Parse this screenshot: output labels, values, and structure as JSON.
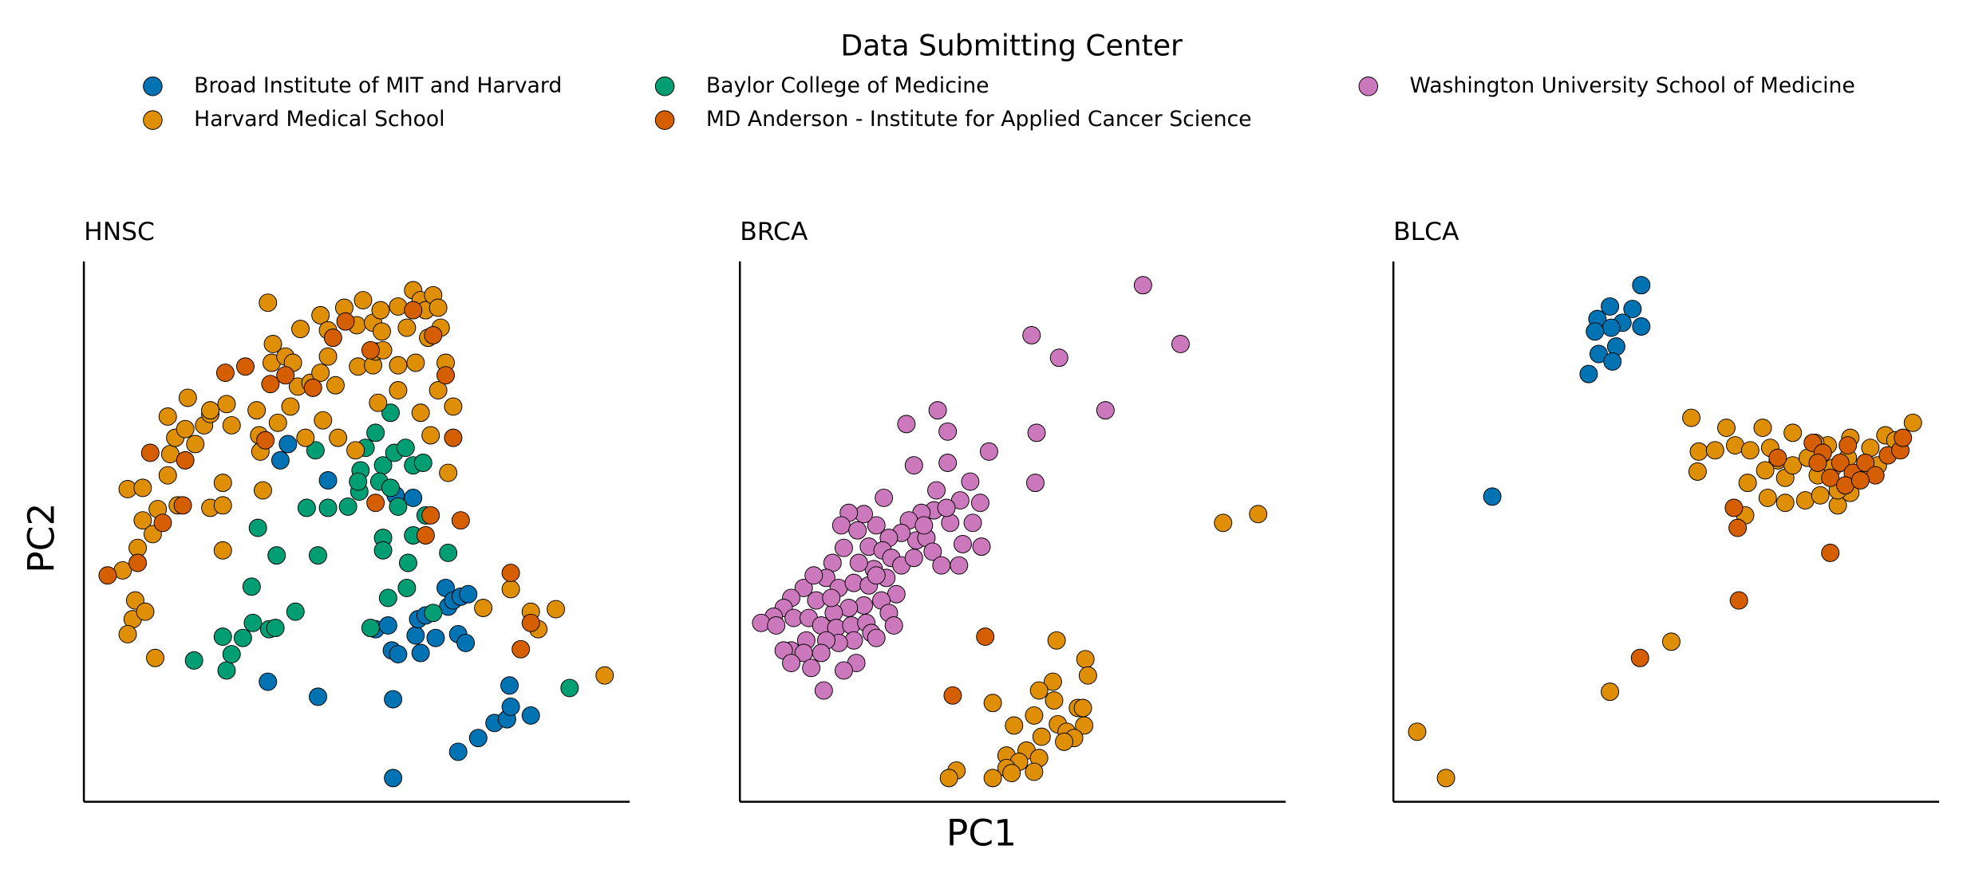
{
  "legend": {
    "title": "Data Submitting Center",
    "entries": [
      {
        "name": "Broad Institute of MIT and Harvard",
        "color": "#0173b2"
      },
      {
        "name": "Harvard Medical School",
        "color": "#de8f05"
      },
      {
        "name": "Baylor College of Medicine",
        "color": "#029e73"
      },
      {
        "name": "MD Anderson - Institute for Applied Cancer Science",
        "color": "#d55e00"
      },
      {
        "name": "Washington University School of Medicine",
        "color": "#cc78bc"
      }
    ]
  },
  "xlabel": "PC1",
  "ylabel": "PC2",
  "chart_data": [
    {
      "type": "scatter",
      "title": "HNSC",
      "xlim": [
        0,
        436
      ],
      "ylim": [
        0,
        432
      ],
      "series": [
        {
          "name": "Broad Institute of MIT and Harvard",
          "x": [
            163,
            195,
            157,
            147,
            187,
            247,
            247,
            299,
            315,
            328,
            338,
            341,
            357,
            340,
            233,
            243,
            246,
            251,
            265,
            269,
            281,
            289,
            291,
            295,
            301,
            307,
            299,
            305,
            267,
            273,
            263,
            249
          ],
          "values": [
            286,
            257,
            273,
            96,
            84,
            82,
            19,
            40,
            51,
            63,
            66,
            76,
            69,
            93,
            138,
            141,
            121,
            118,
            133,
            119,
            131,
            171,
            156,
            161,
            164,
            166,
            134,
            127,
            146,
            149,
            243,
            245
          ]
        },
        {
          "name": "Baylor College of Medicine",
          "x": [
            88,
            114,
            111,
            118,
            127,
            135,
            148,
            153,
            169,
            134,
            139,
            154,
            187,
            178,
            185,
            195,
            211,
            220,
            221,
            225,
            233,
            239,
            245,
            236,
            245,
            251,
            248,
            257,
            263,
            271,
            239,
            239,
            263,
            259,
            258,
            243,
            279,
            291,
            229,
            388,
            273,
            219
          ],
          "values": [
            113,
            105,
            132,
            118,
            131,
            143,
            138,
            139,
            152,
            172,
            219,
            197,
            197,
            235,
            281,
            235,
            236,
            248,
            265,
            283,
            295,
            269,
            311,
            256,
            251,
            236,
            279,
            283,
            269,
            271,
            211,
            201,
            213,
            191,
            171,
            163,
            151,
            199,
            139,
            91,
            229,
            256
          ]
        },
        {
          "name": "Harvard Medical School",
          "x": [
            31,
            39,
            35,
            41,
            49,
            43,
            47,
            55,
            35,
            47,
            57,
            67,
            69,
            73,
            81,
            67,
            83,
            89,
            96,
            101,
            111,
            101,
            111,
            118,
            114,
            101,
            138,
            141,
            143,
            155,
            165,
            171,
            181,
            189,
            201,
            195,
            219,
            231,
            233,
            151,
            147,
            150,
            161,
            167,
            173,
            189,
            195,
            208,
            218,
            223,
            231,
            237,
            238,
            251,
            258,
            263,
            269,
            273,
            279,
            283,
            275,
            285,
            289,
            265,
            251,
            239,
            235,
            251,
            269,
            283,
            295,
            277,
            291,
            217,
            203,
            191,
            177,
            319,
            341,
            357,
            377,
            363,
            416,
            111,
            59,
            75,
            140
          ],
          "values": [
            185,
            146,
            134,
            161,
            152,
            203,
            225,
            214,
            250,
            251,
            115,
            261,
            278,
            291,
            298,
            308,
            323,
            286,
            301,
            310,
            255,
            235,
            201,
            301,
            318,
            313,
            313,
            280,
            249,
            303,
            316,
            332,
            335,
            343,
            333,
            356,
            348,
            349,
            360,
            366,
            399,
            351,
            356,
            351,
            378,
            389,
            377,
            395,
            381,
            401,
            383,
            393,
            376,
            396,
            379,
            409,
            401,
            393,
            405,
            395,
            371,
            379,
            351,
            351,
            349,
            361,
            319,
            329,
            311,
            329,
            316,
            293,
            263,
            281,
            291,
            305,
            291,
            155,
            170,
            152,
            154,
            138,
            101,
            237,
            234,
            237,
            293
          ]
        },
        {
          "name": "MD Anderson - Institute for Applied Cancer Science",
          "x": [
            19,
            43,
            53,
            63,
            79,
            81,
            113,
            129,
            145,
            149,
            161,
            183,
            199,
            209,
            229,
            233,
            273,
            277,
            289,
            295,
            301,
            341,
            357,
            349,
            263,
            279
          ],
          "values": [
            181,
            191,
            279,
            223,
            237,
            273,
            343,
            348,
            289,
            334,
            341,
            331,
            371,
            384,
            361,
            239,
            213,
            229,
            341,
            291,
            225,
            183,
            143,
            122,
            393,
            373
          ]
        }
      ]
    },
    {
      "type": "scatter",
      "title": "BRCA",
      "xlim": [
        0,
        436
      ],
      "ylim": [
        0,
        432
      ],
      "series": [
        {
          "name": "Washington University School of Medicine",
          "x": [
            322,
            352,
            233,
            255,
            292,
            237,
            236,
            158,
            133,
            199,
            166,
            166,
            139,
            184,
            115,
            157,
            176,
            192,
            186,
            193,
            178,
            168,
            155,
            165,
            145,
            135,
            141,
            149,
            154,
            161,
            175,
            129,
            119,
            109,
            99,
            87,
            81,
            94,
            103,
            114,
            121,
            129,
            107,
            95,
            83,
            74,
            69,
            79,
            91,
            103,
            117,
            125,
            113,
            99,
            87,
            75,
            61,
            51,
            41,
            35,
            27,
            17,
            29,
            43,
            55,
            65,
            77,
            89,
            101,
            119,
            123,
            105,
            91,
            79,
            69,
            53,
            41,
            35,
            51,
            65,
            93,
            57,
            41,
            83,
            67,
            109,
            139,
            147,
            73,
            59,
            109
          ],
          "values": [
            413,
            366,
            373,
            355,
            313,
            295,
            255,
            313,
            302,
            280,
            296,
            271,
            269,
            256,
            243,
            249,
            241,
            239,
            223,
            204,
            206,
            223,
            233,
            235,
            231,
            225,
            209,
            211,
            200,
            189,
            189,
            215,
            211,
            221,
            230,
            231,
            221,
            217,
            204,
            201,
            195,
            189,
            186,
            191,
            203,
            191,
            179,
            171,
            175,
            173,
            179,
            166,
            161,
            157,
            155,
            151,
            161,
            171,
            163,
            155,
            148,
            143,
            141,
            147,
            147,
            141,
            139,
            141,
            143,
            151,
            141,
            135,
            129,
            127,
            129,
            129,
            121,
            121,
            119,
            119,
            111,
            107,
            111,
            105,
            89,
            181,
            195,
            221,
            163,
            181,
            131
          ]
        },
        {
          "name": "Harvard Medical School",
          "x": [
            386,
            414,
            253,
            276,
            278,
            250,
            239,
            251,
            202,
            235,
            270,
            274,
            219,
            254,
            275,
            261,
            241,
            267,
            259,
            213,
            229,
            239,
            223,
            213,
            173,
            167,
            202,
            217,
            235
          ],
          "values": [
            223,
            230,
            129,
            114,
            101,
            96,
            89,
            81,
            79,
            69,
            75,
            75,
            61,
            62,
            61,
            56,
            52,
            51,
            48,
            37,
            41,
            35,
            32,
            27,
            25,
            19,
            19,
            23,
            24
          ]
        },
        {
          "name": "MD Anderson - Institute for Applied Cancer Science",
          "x": [
            196,
            170
          ],
          "values": [
            132,
            85
          ]
        }
      ]
    },
    {
      "type": "scatter",
      "title": "BLCA",
      "xlim": [
        0,
        436
      ],
      "ylim": [
        0,
        432
      ],
      "series": [
        {
          "name": "Broad Institute of MIT and Harvard",
          "x": [
            198,
            173,
            191,
            163,
            183,
            174,
            161,
            198,
            178,
            164,
            175,
            156,
            79
          ],
          "values": [
            413,
            396,
            394,
            386,
            383,
            379,
            376,
            380,
            364,
            358,
            352,
            342,
            244
          ]
        },
        {
          "name": "Harvard Medical School",
          "x": [
            19,
            42,
            173,
            222,
            238,
            266,
            244,
            243,
            257,
            273,
            285,
            295,
            301,
            307,
            313,
            297,
            319,
            331,
            339,
            351,
            363,
            375,
            387,
            393,
            415,
            401,
            381,
            365,
            347,
            337,
            319,
            299,
            313,
            329,
            341,
            355,
            365,
            283,
            281,
            355
          ],
          "values": [
            56,
            19,
            88,
            128,
            307,
            299,
            280,
            264,
            281,
            285,
            281,
            299,
            283,
            273,
            259,
            265,
            269,
            275,
            261,
            267,
            275,
            265,
            269,
            293,
            303,
            289,
            283,
            291,
            285,
            287,
            295,
            243,
            239,
            241,
            245,
            237,
            247,
            255,
            229,
            249
          ]
        },
        {
          "name": "MD Anderson - Institute for Applied Cancer Science",
          "x": [
            197,
            276,
            275,
            272,
            349,
            307,
            335,
            343,
            357,
            367,
            377,
            385,
            395,
            405,
            407,
            363,
            349,
            361,
            339,
            373
          ],
          "values": [
            115,
            161,
            219,
            235,
            199,
            275,
            287,
            279,
            271,
            263,
            271,
            261,
            277,
            281,
            291,
            285,
            259,
            253,
            271,
            257
          ]
        }
      ]
    }
  ]
}
